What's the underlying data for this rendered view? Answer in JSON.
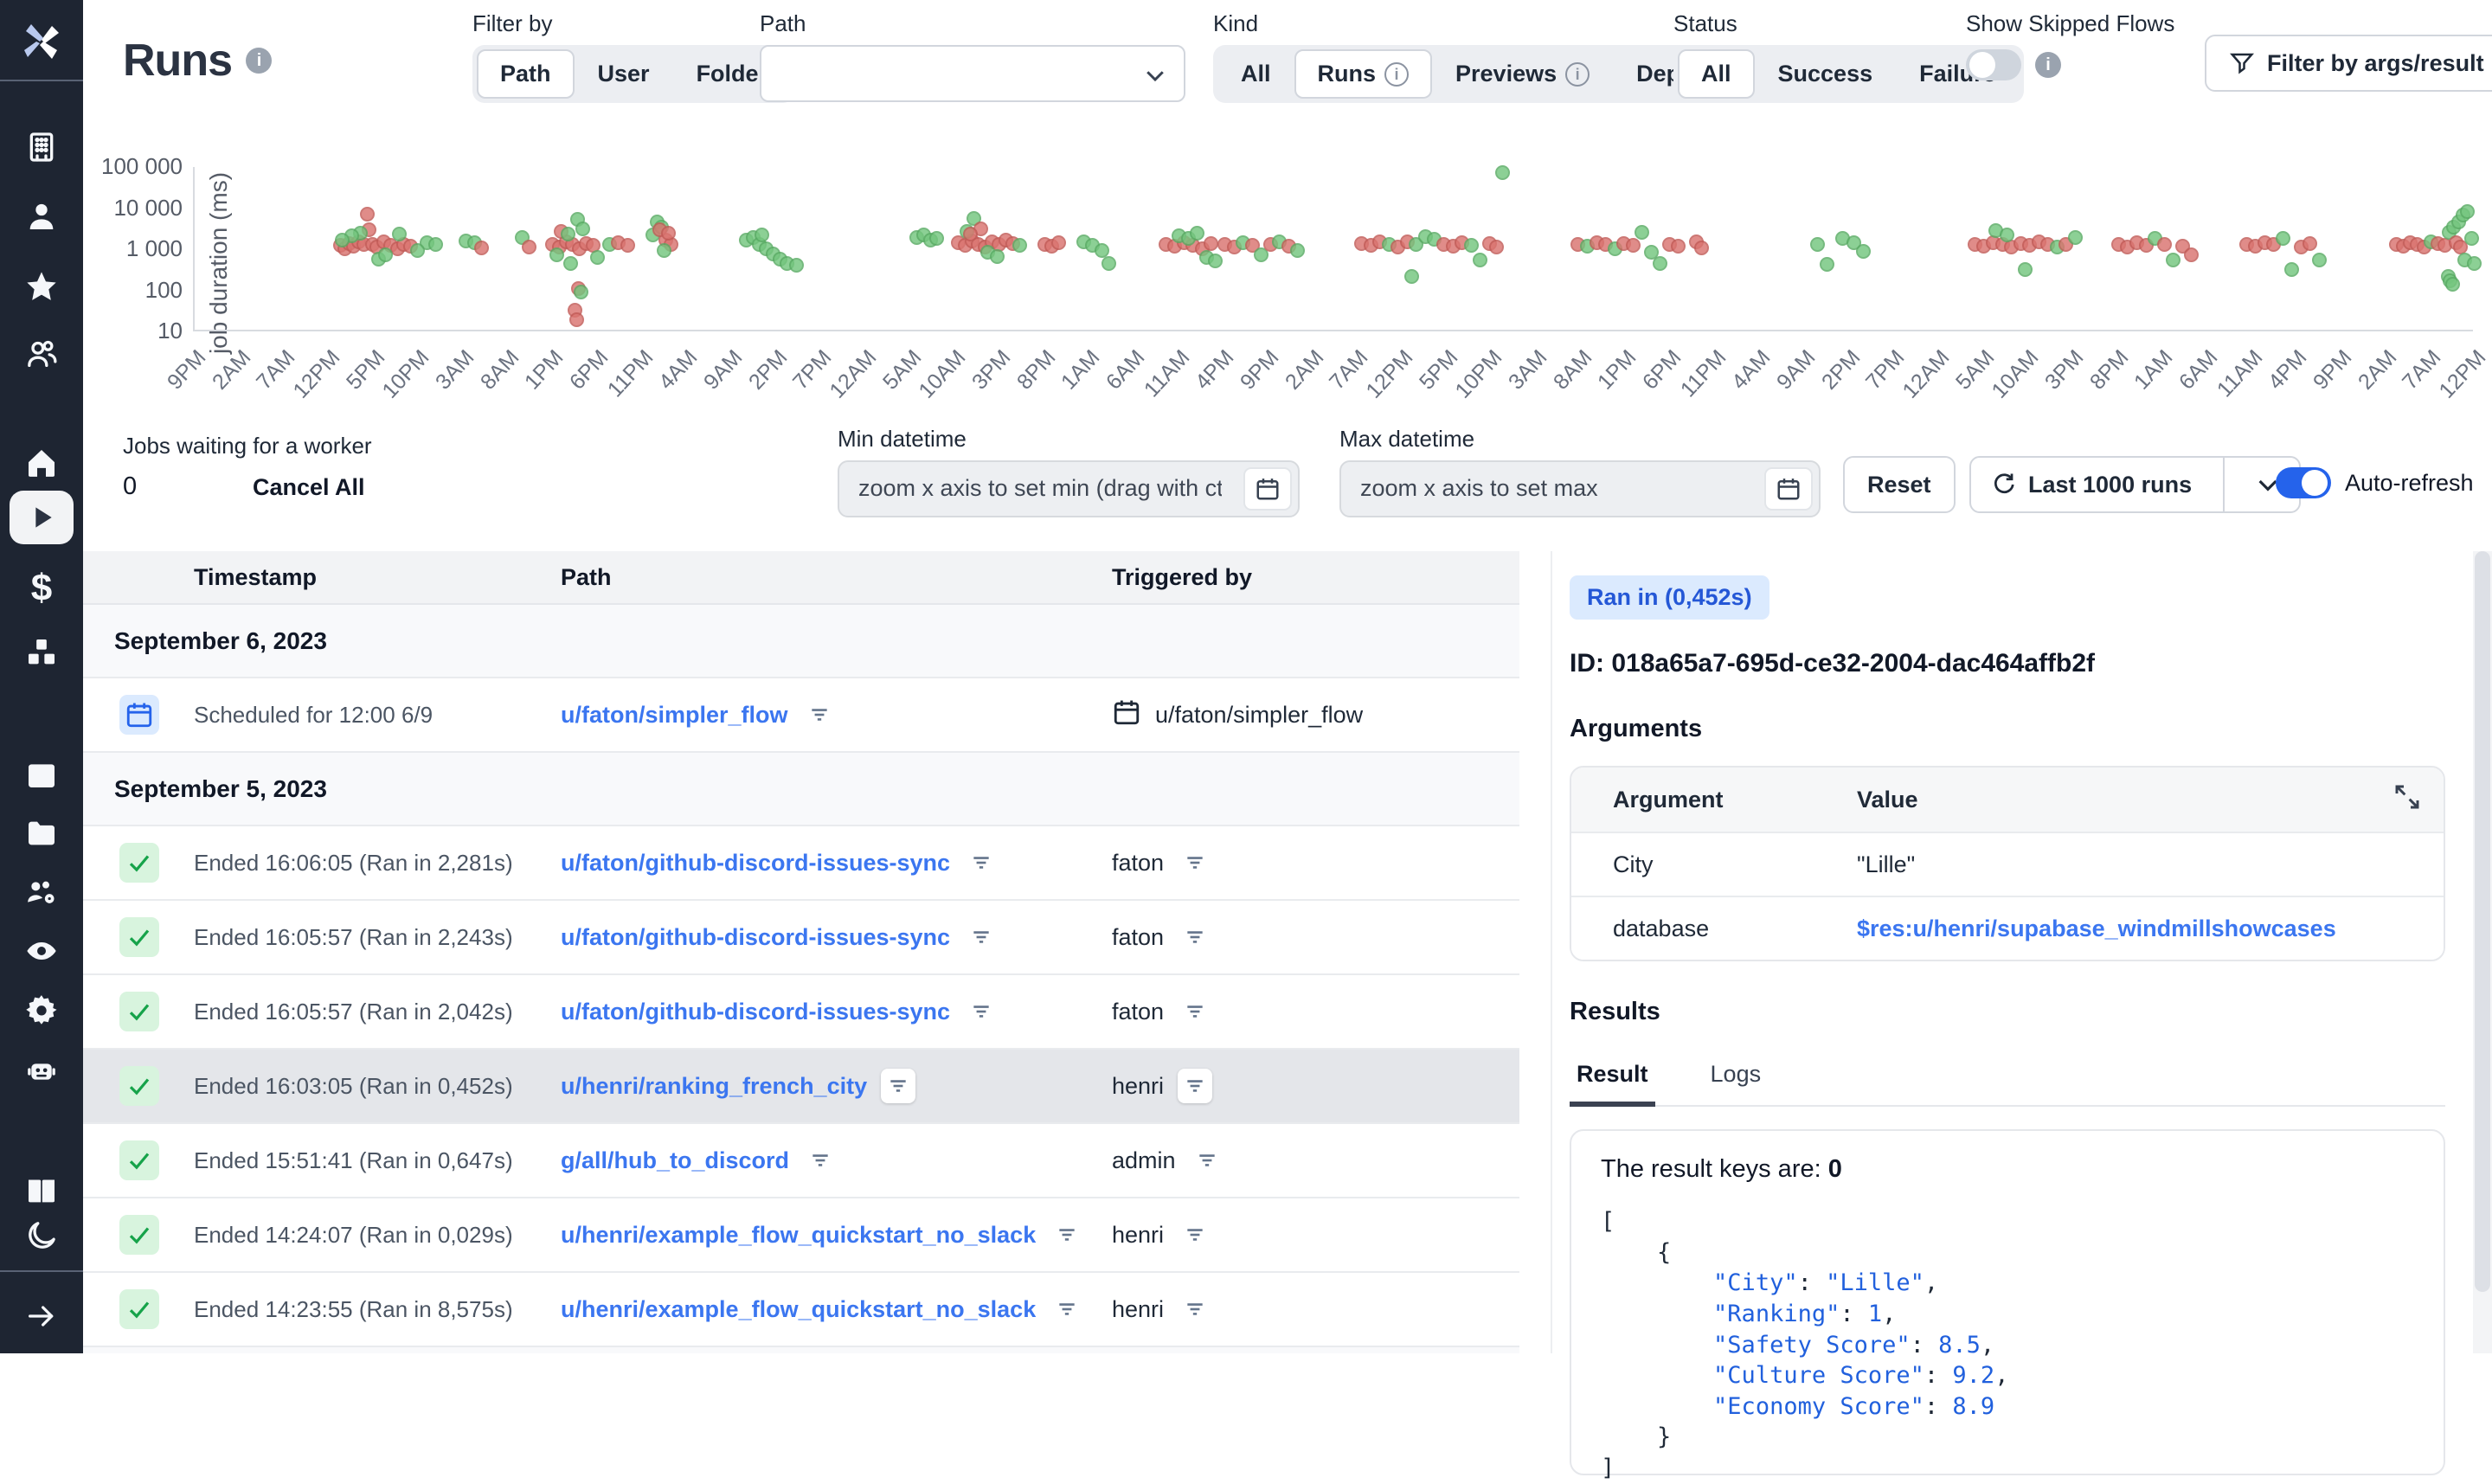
{
  "header": {
    "title": "Runs",
    "filter_by_label": "Filter by",
    "filter_by_options": [
      "Path",
      "User",
      "Folder"
    ],
    "filter_by_selected": "Path",
    "path_label": "Path",
    "kind_label": "Kind",
    "kind_options": [
      {
        "label": "All",
        "info": false,
        "selected": false
      },
      {
        "label": "Runs",
        "info": true,
        "selected": true
      },
      {
        "label": "Previews",
        "info": true,
        "selected": false
      },
      {
        "label": "Deps",
        "info": true,
        "selected": false
      }
    ],
    "status_label": "Status",
    "status_options": [
      {
        "label": "All",
        "selected": true
      },
      {
        "label": "Success",
        "selected": false
      },
      {
        "label": "Failure",
        "selected": false
      }
    ],
    "skipped_label": "Show Skipped Flows",
    "filter_args_button": "Filter by args/result"
  },
  "controls": {
    "jobs_waiting_label": "Jobs waiting for a worker",
    "jobs_waiting_value": "0",
    "cancel_all": "Cancel All",
    "min_label": "Min datetime",
    "min_placeholder": "zoom x axis to set min (drag with ctr",
    "max_label": "Max datetime",
    "max_placeholder": "zoom x axis to set max",
    "reset": "Reset",
    "last_runs": "Last 1000 runs",
    "auto_refresh": "Auto-refresh"
  },
  "chart_data": {
    "type": "scatter",
    "title": "",
    "xlabel": "",
    "ylabel": "job duration (ms)",
    "yscale": "log",
    "ylim": [
      10,
      100000
    ],
    "yticks": [
      {
        "label": "100 000",
        "value": 100000
      },
      {
        "label": "10 000",
        "value": 10000
      },
      {
        "label": "1 000",
        "value": 1000
      },
      {
        "label": "100",
        "value": 100
      },
      {
        "label": "10",
        "value": 10
      }
    ],
    "xticks": [
      "9PM",
      "2AM",
      "7AM",
      "12PM",
      "5PM",
      "10PM",
      "3AM",
      "8AM",
      "1PM",
      "6PM",
      "11PM",
      "4AM",
      "9AM",
      "2PM",
      "7PM",
      "12AM",
      "5AM",
      "10AM",
      "3PM",
      "8PM",
      "1AM",
      "6AM",
      "11AM",
      "4PM",
      "9PM",
      "2AM",
      "7AM",
      "12PM",
      "5PM",
      "10PM",
      "3AM",
      "8AM",
      "1PM",
      "6PM",
      "11PM",
      "4AM",
      "9AM",
      "2PM",
      "7PM",
      "12AM",
      "5AM",
      "10AM",
      "3PM",
      "8PM",
      "1AM",
      "6AM",
      "11AM",
      "4PM",
      "9PM",
      "2AM",
      "7AM",
      "12PM"
    ],
    "series_colors": {
      "g": "success",
      "r": "failure"
    },
    "points": [
      [
        6.4,
        1200,
        "r"
      ],
      [
        6.6,
        1000,
        "r"
      ],
      [
        6.8,
        1350,
        "r"
      ],
      [
        7.0,
        1150,
        "r"
      ],
      [
        7.2,
        1500,
        "r"
      ],
      [
        7.45,
        1250,
        "r"
      ],
      [
        7.6,
        7000,
        "r"
      ],
      [
        7.65,
        2900,
        "r"
      ],
      [
        7.3,
        2400,
        "g"
      ],
      [
        6.9,
        2100,
        "g"
      ],
      [
        6.5,
        1600,
        "g"
      ],
      [
        7.8,
        1300,
        "r"
      ],
      [
        8.0,
        1100,
        "r"
      ],
      [
        8.3,
        1450,
        "r"
      ],
      [
        8.6,
        1200,
        "r"
      ],
      [
        8.9,
        1000,
        "r"
      ],
      [
        9.2,
        1300,
        "r"
      ],
      [
        9.5,
        1150,
        "r"
      ],
      [
        8.1,
        560,
        "g"
      ],
      [
        8.4,
        720,
        "g"
      ],
      [
        9.0,
        2300,
        "g"
      ],
      [
        10.2,
        1400,
        "g"
      ],
      [
        10.6,
        1250,
        "g"
      ],
      [
        9.8,
        900,
        "g"
      ],
      [
        11.9,
        1550,
        "g"
      ],
      [
        12.3,
        1400,
        "g"
      ],
      [
        12.6,
        1050,
        "r"
      ],
      [
        14.4,
        1850,
        "g"
      ],
      [
        14.7,
        1100,
        "r"
      ],
      [
        15.7,
        1300,
        "r"
      ],
      [
        16.0,
        1100,
        "r"
      ],
      [
        16.3,
        1450,
        "r"
      ],
      [
        16.6,
        1250,
        "r"
      ],
      [
        16.9,
        1000,
        "r"
      ],
      [
        17.2,
        1350,
        "r"
      ],
      [
        17.5,
        1200,
        "r"
      ],
      [
        16.1,
        2600,
        "r"
      ],
      [
        16.4,
        2300,
        "g"
      ],
      [
        16.8,
        5200,
        "g"
      ],
      [
        17.05,
        3000,
        "g"
      ],
      [
        15.9,
        700,
        "g"
      ],
      [
        17.7,
        620,
        "g"
      ],
      [
        16.5,
        430,
        "g"
      ],
      [
        16.85,
        110,
        "r"
      ],
      [
        16.95,
        88,
        "g"
      ],
      [
        16.7,
        32,
        "r"
      ],
      [
        16.78,
        19,
        "r"
      ],
      [
        18.2,
        1250,
        "g"
      ],
      [
        18.6,
        1400,
        "r"
      ],
      [
        19.0,
        1200,
        "r"
      ],
      [
        20.1,
        2200,
        "g"
      ],
      [
        20.3,
        4600,
        "g"
      ],
      [
        20.5,
        3300,
        "g"
      ],
      [
        20.7,
        1600,
        "r"
      ],
      [
        20.9,
        1250,
        "r"
      ],
      [
        20.4,
        2900,
        "r"
      ],
      [
        20.8,
        2400,
        "r"
      ],
      [
        20.6,
        900,
        "g"
      ],
      [
        24.2,
        1600,
        "g"
      ],
      [
        24.5,
        1900,
        "g"
      ],
      [
        24.8,
        1300,
        "g"
      ],
      [
        25.1,
        1000,
        "g"
      ],
      [
        25.4,
        750,
        "g"
      ],
      [
        25.7,
        550,
        "g"
      ],
      [
        26.0,
        430,
        "g"
      ],
      [
        26.4,
        390,
        "g"
      ],
      [
        24.9,
        2200,
        "g"
      ],
      [
        31.7,
        1900,
        "g"
      ],
      [
        32.0,
        2200,
        "g"
      ],
      [
        32.3,
        1600,
        "g"
      ],
      [
        32.55,
        1750,
        "g"
      ],
      [
        33.5,
        1400,
        "r"
      ],
      [
        33.8,
        1200,
        "r"
      ],
      [
        34.1,
        1550,
        "r"
      ],
      [
        34.4,
        1300,
        "r"
      ],
      [
        34.7,
        1100,
        "r"
      ],
      [
        35.0,
        1450,
        "r"
      ],
      [
        35.3,
        1250,
        "r"
      ],
      [
        33.9,
        2700,
        "g"
      ],
      [
        34.2,
        5500,
        "g"
      ],
      [
        34.5,
        3100,
        "r"
      ],
      [
        34.05,
        2300,
        "r"
      ],
      [
        35.6,
        1600,
        "r"
      ],
      [
        35.9,
        1350,
        "r"
      ],
      [
        34.8,
        820,
        "g"
      ],
      [
        35.2,
        660,
        "g"
      ],
      [
        36.2,
        1200,
        "g"
      ],
      [
        37.3,
        1300,
        "r"
      ],
      [
        37.6,
        1150,
        "r"
      ],
      [
        37.9,
        1400,
        "r"
      ],
      [
        39.0,
        1500,
        "g"
      ],
      [
        39.4,
        1200,
        "g"
      ],
      [
        39.8,
        920,
        "g"
      ],
      [
        40.1,
        430,
        "g"
      ],
      [
        42.6,
        1300,
        "r"
      ],
      [
        43.0,
        1150,
        "r"
      ],
      [
        43.4,
        1400,
        "r"
      ],
      [
        43.8,
        1200,
        "r"
      ],
      [
        44.2,
        1000,
        "r"
      ],
      [
        44.6,
        1350,
        "r"
      ],
      [
        43.2,
        2100,
        "g"
      ],
      [
        43.6,
        1800,
        "g"
      ],
      [
        44.0,
        2400,
        "g"
      ],
      [
        44.4,
        620,
        "g"
      ],
      [
        44.8,
        500,
        "g"
      ],
      [
        45.2,
        1250,
        "r"
      ],
      [
        45.6,
        1100,
        "r"
      ],
      [
        46.0,
        1400,
        "g"
      ],
      [
        46.4,
        1200,
        "r"
      ],
      [
        46.8,
        700,
        "g"
      ],
      [
        47.2,
        1300,
        "r"
      ],
      [
        47.6,
        1500,
        "g"
      ],
      [
        48.0,
        1150,
        "r"
      ],
      [
        48.4,
        900,
        "g"
      ],
      [
        51.2,
        1350,
        "r"
      ],
      [
        51.6,
        1200,
        "r"
      ],
      [
        52.0,
        1500,
        "r"
      ],
      [
        52.4,
        1300,
        "g"
      ],
      [
        52.8,
        1100,
        "r"
      ],
      [
        53.2,
        1450,
        "r"
      ],
      [
        53.4,
        210,
        "g"
      ],
      [
        53.6,
        1250,
        "g"
      ],
      [
        54.0,
        2000,
        "g"
      ],
      [
        54.4,
        1700,
        "g"
      ],
      [
        54.8,
        1300,
        "r"
      ],
      [
        55.2,
        1150,
        "r"
      ],
      [
        55.6,
        1400,
        "r"
      ],
      [
        56.0,
        1200,
        "g"
      ],
      [
        56.4,
        520,
        "g"
      ],
      [
        56.8,
        1350,
        "r"
      ],
      [
        57.4,
        70000,
        "g"
      ],
      [
        57.1,
        1100,
        "r"
      ],
      [
        60.7,
        1300,
        "r"
      ],
      [
        61.1,
        1150,
        "g"
      ],
      [
        61.5,
        1400,
        "r"
      ],
      [
        61.9,
        1250,
        "r"
      ],
      [
        62.3,
        1000,
        "g"
      ],
      [
        62.7,
        1350,
        "r"
      ],
      [
        63.1,
        1200,
        "r"
      ],
      [
        63.5,
        2500,
        "g"
      ],
      [
        63.9,
        820,
        "g"
      ],
      [
        64.3,
        430,
        "g"
      ],
      [
        64.7,
        1300,
        "r"
      ],
      [
        65.1,
        1150,
        "r"
      ],
      [
        65.9,
        1450,
        "r"
      ],
      [
        66.1,
        1050,
        "r"
      ],
      [
        71.2,
        1250,
        "g"
      ],
      [
        71.6,
        420,
        "g"
      ],
      [
        72.3,
        1800,
        "g"
      ],
      [
        72.8,
        1400,
        "g"
      ],
      [
        73.2,
        860,
        "g"
      ],
      [
        78.1,
        1300,
        "r"
      ],
      [
        78.5,
        1150,
        "r"
      ],
      [
        78.9,
        1400,
        "r"
      ],
      [
        79.3,
        1250,
        "r"
      ],
      [
        79.7,
        1100,
        "r"
      ],
      [
        80.1,
        1350,
        "r"
      ],
      [
        80.5,
        1200,
        "r"
      ],
      [
        79.0,
        2800,
        "g"
      ],
      [
        79.5,
        2200,
        "g"
      ],
      [
        80.9,
        1450,
        "r"
      ],
      [
        81.3,
        1250,
        "r"
      ],
      [
        81.7,
        1100,
        "g"
      ],
      [
        80.3,
        310,
        "g"
      ],
      [
        82.1,
        1300,
        "r"
      ],
      [
        82.5,
        1900,
        "g"
      ],
      [
        84.4,
        1250,
        "r"
      ],
      [
        84.8,
        1100,
        "r"
      ],
      [
        85.2,
        1400,
        "r"
      ],
      [
        85.6,
        1200,
        "r"
      ],
      [
        86.0,
        1800,
        "g"
      ],
      [
        86.4,
        1300,
        "r"
      ],
      [
        86.8,
        520,
        "g"
      ],
      [
        87.2,
        1150,
        "r"
      ],
      [
        87.6,
        720,
        "r"
      ],
      [
        90.0,
        1300,
        "r"
      ],
      [
        90.4,
        1150,
        "r"
      ],
      [
        90.8,
        1400,
        "r"
      ],
      [
        91.2,
        1250,
        "r"
      ],
      [
        91.6,
        1800,
        "g"
      ],
      [
        92.0,
        320,
        "g"
      ],
      [
        92.4,
        1100,
        "r"
      ],
      [
        92.8,
        1350,
        "r"
      ],
      [
        93.2,
        520,
        "g"
      ],
      [
        96.6,
        1250,
        "r"
      ],
      [
        96.9,
        1150,
        "r"
      ],
      [
        97.2,
        1400,
        "r"
      ],
      [
        97.5,
        1300,
        "r"
      ],
      [
        97.8,
        1100,
        "r"
      ],
      [
        98.1,
        1500,
        "g"
      ],
      [
        98.4,
        1350,
        "r"
      ],
      [
        98.7,
        1200,
        "r"
      ],
      [
        98.9,
        2500,
        "g"
      ],
      [
        99.1,
        3300,
        "g"
      ],
      [
        99.3,
        4500,
        "g"
      ],
      [
        99.5,
        6500,
        "g"
      ],
      [
        99.7,
        8200,
        "g"
      ],
      [
        99.2,
        1400,
        "r"
      ],
      [
        99.4,
        1100,
        "r"
      ],
      [
        98.85,
        210,
        "g"
      ],
      [
        98.95,
        165,
        "g"
      ],
      [
        99.05,
        140,
        "g"
      ],
      [
        99.6,
        520,
        "g"
      ],
      [
        99.9,
        1800,
        "g"
      ],
      [
        100,
        430,
        "g"
      ]
    ]
  },
  "table": {
    "columns": [
      "Timestamp",
      "Path",
      "Triggered by"
    ],
    "rows": [
      {
        "type": "group",
        "label": "September 6, 2023"
      },
      {
        "type": "run",
        "icon": "calendar",
        "timestamp": "Scheduled for 12:00 6/9",
        "path": "u/faton/simpler_flow",
        "trigger_icon": "calendar",
        "triggered_by": "u/faton/simpler_flow",
        "selected": false
      },
      {
        "type": "group",
        "label": "September 5, 2023"
      },
      {
        "type": "run",
        "icon": "check",
        "timestamp": "Ended 16:06:05 (Ran in 2,281s)",
        "path": "u/faton/github-discord-issues-sync",
        "triggered_by": "faton",
        "selected": false
      },
      {
        "type": "run",
        "icon": "check",
        "timestamp": "Ended 16:05:57 (Ran in 2,243s)",
        "path": "u/faton/github-discord-issues-sync",
        "triggered_by": "faton",
        "selected": false
      },
      {
        "type": "run",
        "icon": "check",
        "timestamp": "Ended 16:05:57 (Ran in 2,042s)",
        "path": "u/faton/github-discord-issues-sync",
        "triggered_by": "faton",
        "selected": false
      },
      {
        "type": "run",
        "icon": "check",
        "timestamp": "Ended 16:03:05 (Ran in 0,452s)",
        "path": "u/henri/ranking_french_city",
        "triggered_by": "henri",
        "selected": true
      },
      {
        "type": "run",
        "icon": "check",
        "timestamp": "Ended 15:51:41 (Ran in 0,647s)",
        "path": "g/all/hub_to_discord",
        "triggered_by": "admin",
        "selected": false
      },
      {
        "type": "run",
        "icon": "check",
        "timestamp": "Ended 14:24:07 (Ran in 0,029s)",
        "path": "u/henri/example_flow_quickstart_no_slack",
        "triggered_by": "henri",
        "selected": false
      },
      {
        "type": "run",
        "icon": "check",
        "timestamp": "Ended 14:23:55 (Ran in 8,575s)",
        "path": "u/henri/example_flow_quickstart_no_slack",
        "triggered_by": "henri",
        "selected": false
      }
    ]
  },
  "detail": {
    "ran_badge": "Ran in (0,452s)",
    "id_line": "ID: 018a65a7-695d-ce32-2004-dac464affb2f",
    "arguments_title": "Arguments",
    "args_columns": [
      "Argument",
      "Value"
    ],
    "args_rows": [
      {
        "name": "City",
        "value": "\"Lille\"",
        "link": false
      },
      {
        "name": "database",
        "value": "$res:u/henri/supabase_windmillshowcases",
        "link": true
      }
    ],
    "results_title": "Results",
    "tabs": [
      {
        "label": "Result",
        "active": true
      },
      {
        "label": "Logs",
        "active": false
      }
    ],
    "result_keys_label": "The result keys are:",
    "result_keys_value": "0",
    "result_json": "[\n    {\n        \"City\": \"Lille\",\n        \"Ranking\": 1,\n        \"Safety Score\": 8.5,\n        \"Culture Score\": 9.2,\n        \"Economy Score\": 8.9\n    }\n]"
  },
  "sidebar": {
    "items": [
      {
        "icon": "building",
        "name": "workspace"
      },
      {
        "icon": "user",
        "name": "user"
      },
      {
        "icon": "star",
        "name": "favorites"
      },
      {
        "icon": "user-group",
        "name": "groups"
      },
      {
        "icon": "home",
        "name": "home"
      },
      {
        "icon": "play",
        "name": "runs",
        "active": true
      },
      {
        "icon": "dollar",
        "name": "variables"
      },
      {
        "icon": "boxes",
        "name": "resources"
      },
      {
        "icon": "calendar",
        "name": "schedules"
      },
      {
        "icon": "folder",
        "name": "folders"
      },
      {
        "icon": "team-gear",
        "name": "workers"
      },
      {
        "icon": "eye",
        "name": "audit-logs"
      },
      {
        "icon": "gear",
        "name": "settings"
      },
      {
        "icon": "robot",
        "name": "openai"
      },
      {
        "icon": "book",
        "name": "docs"
      },
      {
        "icon": "moon",
        "name": "dark-mode"
      },
      {
        "icon": "arrow-right",
        "name": "expand-sidebar"
      }
    ]
  }
}
